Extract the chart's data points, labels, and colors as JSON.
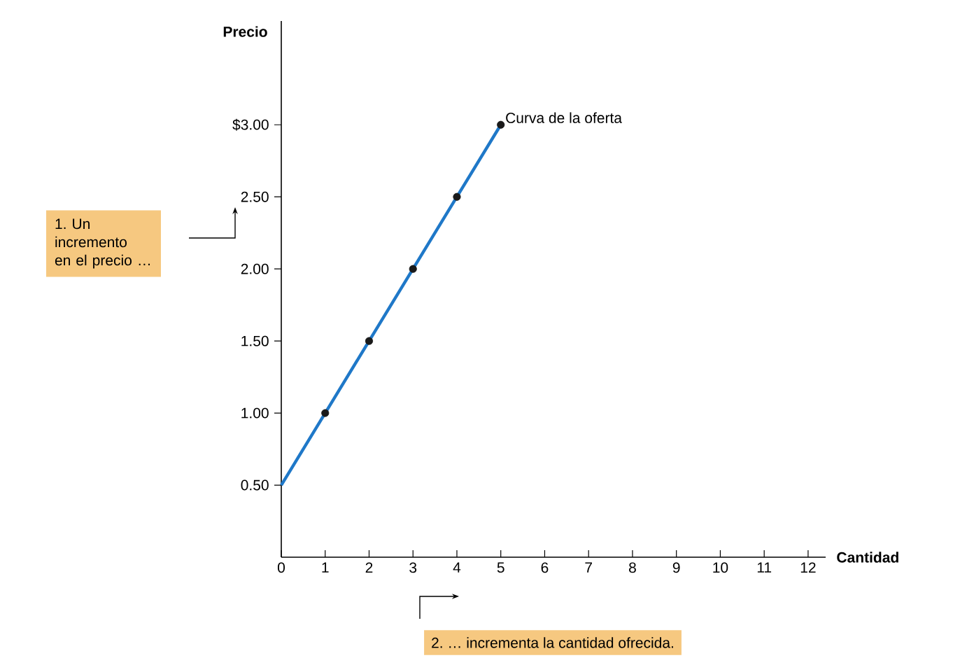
{
  "chart_data": {
    "type": "line",
    "xlabel": "Cantidad",
    "ylabel": "Precio",
    "series": [
      {
        "x": [
          0,
          1,
          2,
          3,
          4,
          5
        ],
        "values": [
          0.5,
          1,
          1.5,
          2,
          2.5,
          3
        ],
        "color": "#1f78c8",
        "marker": "none",
        "line_style": "solid"
      },
      {
        "type": "scatter",
        "x": [
          1,
          2,
          3,
          4,
          5
        ],
        "values": [
          1,
          1.5,
          2,
          2.5,
          3
        ],
        "color": "#1a1a1a",
        "marker": "circle"
      }
    ],
    "xlim": [
      0,
      12.4
    ],
    "ylim": [
      0,
      3.72
    ],
    "xticks": [
      0,
      1,
      2,
      3,
      4,
      5,
      6,
      7,
      8,
      9,
      10,
      11,
      12
    ],
    "yticks": [
      {
        "value": 0.5,
        "label": "0.50"
      },
      {
        "value": 1,
        "label": "1.00"
      },
      {
        "value": 1.5,
        "label": "1.50"
      },
      {
        "value": 2,
        "label": "2.00"
      },
      {
        "value": 2.5,
        "label": "2.50"
      },
      {
        "value": 3,
        "label": "$3.00"
      }
    ],
    "annotations": [
      {
        "text": "Curva de la oferta",
        "x": 5,
        "y": 3
      },
      "1. Un incremento en el precio …",
      "2. … incrementa la cantidad ofrecida."
    ]
  }
}
